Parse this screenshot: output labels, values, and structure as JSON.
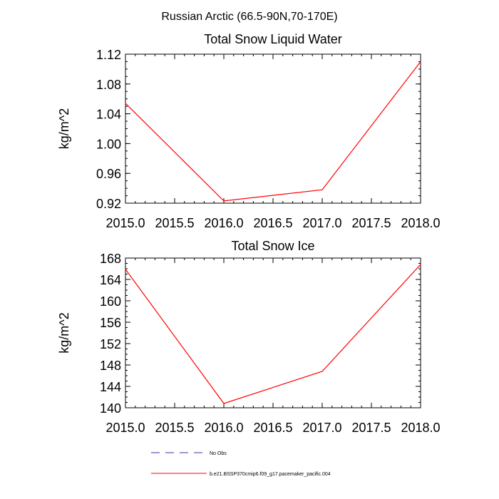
{
  "page_title": "Russian Arctic (66.5-90N,70-170E)",
  "chart_data": [
    {
      "type": "line",
      "title": "Total Snow Liquid Water",
      "xlabel": "",
      "ylabel": "kg/m^2",
      "xlim": [
        2015.0,
        2018.0
      ],
      "ylim": [
        0.92,
        1.12
      ],
      "xticks": [
        2015.0,
        2015.5,
        2016.0,
        2016.5,
        2017.0,
        2017.5,
        2018.0
      ],
      "xtick_labels": [
        "2015.0",
        "2015.5",
        "2016.0",
        "2016.5",
        "2017.0",
        "2017.5",
        "2018.0"
      ],
      "yticks": [
        0.92,
        0.96,
        1.0,
        1.04,
        1.08,
        1.12
      ],
      "ytick_labels": [
        "0.92",
        "0.96",
        "1.00",
        "1.04",
        "1.08",
        "1.12"
      ],
      "x": [
        2015,
        2016,
        2017,
        2018
      ],
      "series": [
        {
          "values": [
            1.054,
            0.923,
            0.938,
            1.11
          ],
          "color": "#ff0000"
        }
      ]
    },
    {
      "type": "line",
      "title": "Total Snow Ice",
      "xlabel": "",
      "ylabel": "kg/m^2",
      "xlim": [
        2015.0,
        2018.0
      ],
      "ylim": [
        140,
        168
      ],
      "xticks": [
        2015.0,
        2015.5,
        2016.0,
        2016.5,
        2017.0,
        2017.5,
        2018.0
      ],
      "xtick_labels": [
        "2015.0",
        "2015.5",
        "2016.0",
        "2016.5",
        "2017.0",
        "2017.5",
        "2018.0"
      ],
      "yticks": [
        140,
        144,
        148,
        152,
        156,
        160,
        164,
        168
      ],
      "ytick_labels": [
        "140",
        "144",
        "148",
        "152",
        "156",
        "160",
        "164",
        "168"
      ],
      "x": [
        2015,
        2016,
        2017,
        2018
      ],
      "series": [
        {
          "values": [
            165.9,
            140.8,
            146.8,
            166.8
          ],
          "color": "#ff0000"
        }
      ]
    }
  ],
  "legend": {
    "placement": "bottom",
    "items": [
      {
        "label": "No Obs",
        "color": "#3333aa",
        "dashed": true
      },
      {
        "label": "b.e21.BSSP370cmip6.f09_g17.pacemaker_pacific.004",
        "color": "#ff0000",
        "dashed": false
      }
    ]
  }
}
